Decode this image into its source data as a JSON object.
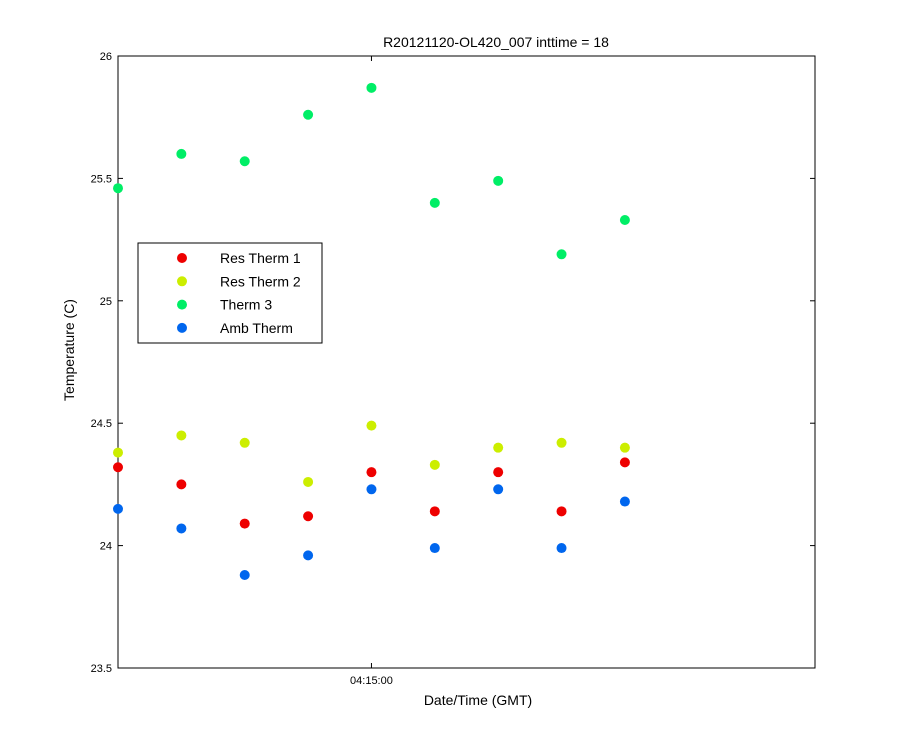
{
  "chart_data": {
    "type": "scatter",
    "title": "R20121120-OL420_007 inttime = 18",
    "xlabel": "Date/Time (GMT)",
    "ylabel": "Temperature (C)",
    "ylim": [
      23.5,
      26
    ],
    "yticks": [
      23.5,
      24,
      24.5,
      25,
      25.5,
      26
    ],
    "ytick_labels": [
      "23.5",
      "24",
      "24.5",
      "25",
      "25.5",
      "26"
    ],
    "xlim": [
      -4,
      7
    ],
    "xticks": [
      {
        "x": 0,
        "label": "04:15:00"
      }
    ],
    "x": [
      -4,
      -3,
      -2,
      -1,
      0,
      1,
      2,
      3,
      4
    ],
    "legend_position": "center-left",
    "grid": false,
    "series": [
      {
        "name": "Res Therm 1",
        "color": "#ee0000",
        "values": [
          24.32,
          24.25,
          24.09,
          24.12,
          24.3,
          24.14,
          24.3,
          24.14,
          24.34
        ]
      },
      {
        "name": "Res Therm 2",
        "color": "#ccee00",
        "values": [
          24.38,
          24.45,
          24.42,
          24.26,
          24.49,
          24.33,
          24.4,
          24.42,
          24.4
        ]
      },
      {
        "name": "Therm 3",
        "color": "#00ee66",
        "values": [
          25.46,
          25.6,
          25.57,
          25.76,
          25.87,
          25.4,
          25.49,
          25.19,
          25.33
        ]
      },
      {
        "name": "Amb Therm",
        "color": "#0066ee",
        "values": [
          24.15,
          24.07,
          23.88,
          23.96,
          24.23,
          23.99,
          24.23,
          23.99,
          24.18
        ]
      }
    ]
  }
}
